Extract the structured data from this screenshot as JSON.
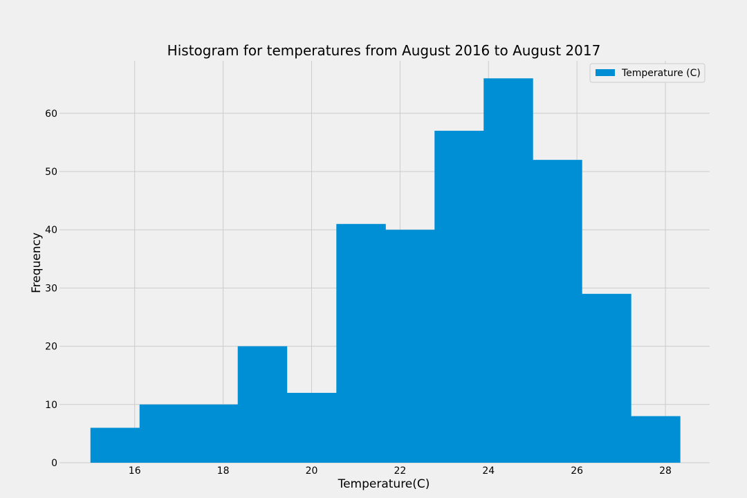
{
  "chart_data": {
    "type": "bar",
    "title": "Histogram for temperatures from August 2016 to August 2017",
    "xlabel": "Temperature(C)",
    "ylabel": "Frequency",
    "xlim": [
      14.3,
      29.0
    ],
    "ylim": [
      0,
      69
    ],
    "x_ticks": [
      16,
      18,
      20,
      22,
      24,
      26,
      28
    ],
    "y_ticks": [
      0,
      10,
      20,
      30,
      40,
      50,
      60
    ],
    "grid": true,
    "legend_position": "top-right",
    "series": [
      {
        "name": "Temperature (C)",
        "color": "#008fd5",
        "bins": [
          {
            "start": 15.0,
            "end": 16.11,
            "count": 6
          },
          {
            "start": 16.11,
            "end": 17.22,
            "count": 10
          },
          {
            "start": 17.22,
            "end": 18.33,
            "count": 10
          },
          {
            "start": 18.33,
            "end": 19.44,
            "count": 20
          },
          {
            "start": 19.44,
            "end": 20.56,
            "count": 12
          },
          {
            "start": 20.56,
            "end": 21.67,
            "count": 41
          },
          {
            "start": 21.67,
            "end": 22.78,
            "count": 40
          },
          {
            "start": 22.78,
            "end": 23.89,
            "count": 57
          },
          {
            "start": 23.89,
            "end": 25.0,
            "count": 66
          },
          {
            "start": 25.0,
            "end": 26.11,
            "count": 52
          },
          {
            "start": 26.11,
            "end": 27.22,
            "count": 29
          },
          {
            "start": 27.22,
            "end": 28.33,
            "count": 8
          }
        ]
      }
    ]
  }
}
